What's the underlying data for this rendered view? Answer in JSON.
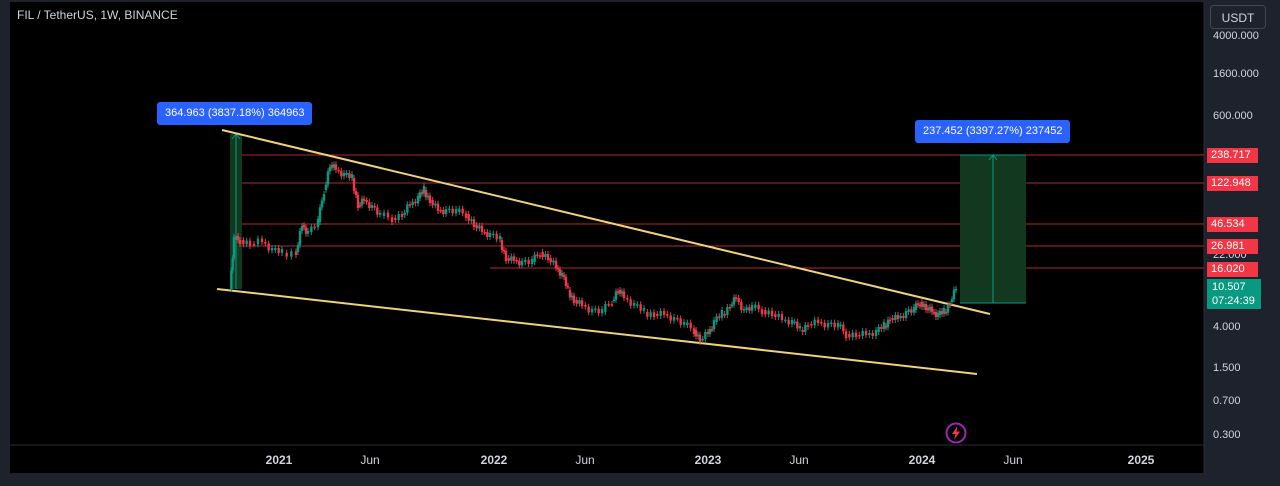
{
  "header": {
    "title": "FIL / TetherUS, 1W, BINANCE"
  },
  "currency_button": {
    "label": "USDT"
  },
  "price_axis": {
    "ticks": [
      "4000.000",
      "1600.000",
      "600.000",
      "22.000",
      "4.000",
      "1.500",
      "0.700",
      "0.300"
    ],
    "level_badges": [
      "238.717",
      "122.948",
      "46.534",
      "26.981",
      "16.020"
    ],
    "current_price": "10.507",
    "countdown": "07:24:39"
  },
  "time_axis": {
    "ticks": [
      "2021",
      "Jun",
      "2022",
      "Jun",
      "2023",
      "Jun",
      "2024",
      "Jun",
      "2025"
    ]
  },
  "measurements": [
    {
      "label": "364.963 (3837.18%) 364963"
    },
    {
      "label": "237.452 (3397.27%) 237452"
    }
  ],
  "colors": {
    "background": "#000000",
    "up_candle": "#089981",
    "down_candle": "#f23645",
    "trendline": "#f0d27a",
    "level_line": "#b22833",
    "measure_bg": "#2962ff",
    "range_fill": "#12391f"
  },
  "icons": {
    "bolt": "bolt-icon"
  }
}
